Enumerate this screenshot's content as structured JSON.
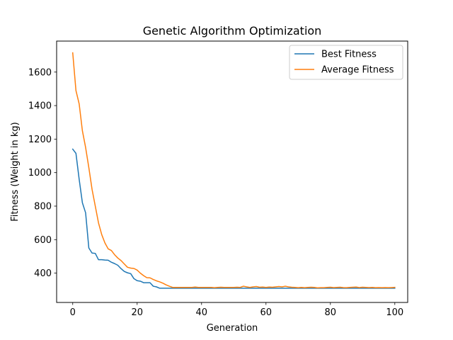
{
  "chart_data": {
    "type": "line",
    "title": "Genetic Algorithm Optimization",
    "xlabel": "Generation",
    "ylabel": "Fitness (Weight in kg)",
    "xlim": [
      -5,
      104
    ],
    "ylim": [
      225,
      1785
    ],
    "xticks": [
      0,
      20,
      40,
      60,
      80,
      100
    ],
    "yticks": [
      400,
      600,
      800,
      1000,
      1200,
      1400,
      1600
    ],
    "grid": false,
    "legend_position": "top-right",
    "x": [
      0,
      1,
      2,
      3,
      4,
      5,
      6,
      7,
      8,
      9,
      10,
      11,
      12,
      13,
      14,
      15,
      16,
      17,
      18,
      19,
      20,
      21,
      22,
      23,
      24,
      25,
      26,
      27,
      28,
      29,
      30,
      31,
      32,
      33,
      34,
      35,
      36,
      37,
      38,
      39,
      40,
      41,
      42,
      43,
      44,
      45,
      46,
      47,
      48,
      49,
      50,
      51,
      52,
      53,
      54,
      55,
      56,
      57,
      58,
      59,
      60,
      61,
      62,
      63,
      64,
      65,
      66,
      67,
      68,
      69,
      70,
      71,
      72,
      73,
      74,
      75,
      76,
      77,
      78,
      79,
      80,
      81,
      82,
      83,
      84,
      85,
      86,
      87,
      88,
      89,
      90,
      91,
      92,
      93,
      94,
      95,
      96,
      97,
      98,
      99,
      100
    ],
    "series": [
      {
        "name": "Best Fitness",
        "color": "#1f77b4",
        "values": [
          1140,
          1115,
          960,
          820,
          760,
          550,
          520,
          518,
          480,
          480,
          478,
          477,
          465,
          457,
          447,
          427,
          410,
          402,
          397,
          367,
          355,
          352,
          343,
          343,
          343,
          322,
          318,
          310,
          310,
          310,
          310,
          310,
          310,
          310,
          310,
          310,
          310,
          310,
          310,
          310,
          310,
          310,
          310,
          310,
          310,
          310,
          310,
          310,
          310,
          310,
          310,
          310,
          310,
          310,
          310,
          310,
          310,
          310,
          310,
          310,
          310,
          310,
          310,
          310,
          310,
          310,
          310,
          310,
          310,
          310,
          310,
          310,
          310,
          310,
          310,
          310,
          310,
          310,
          310,
          310,
          310,
          310,
          310,
          310,
          310,
          310,
          310,
          310,
          310,
          310,
          310,
          310,
          310,
          310,
          310,
          310,
          310,
          310,
          310,
          310,
          310
        ]
      },
      {
        "name": "Average Fitness",
        "color": "#ff7f0e",
        "values": [
          1715,
          1490,
          1410,
          1250,
          1150,
          1030,
          900,
          800,
          700,
          630,
          580,
          545,
          535,
          510,
          490,
          475,
          455,
          435,
          430,
          428,
          418,
          400,
          385,
          373,
          372,
          362,
          354,
          348,
          340,
          330,
          322,
          315,
          315,
          315,
          315,
          315,
          315,
          315,
          317,
          315,
          315,
          315,
          315,
          315,
          313,
          315,
          316,
          315,
          315,
          315,
          315,
          316,
          315,
          322,
          318,
          315,
          318,
          320,
          316,
          317,
          315,
          317,
          316,
          318,
          320,
          318,
          322,
          318,
          316,
          315,
          313,
          315,
          313,
          315,
          316,
          315,
          312,
          313,
          313,
          315,
          316,
          314,
          315,
          316,
          314,
          313,
          315,
          316,
          317,
          314,
          316,
          315,
          314,
          315,
          313,
          314,
          313,
          314,
          313,
          314,
          315
        ]
      }
    ]
  }
}
